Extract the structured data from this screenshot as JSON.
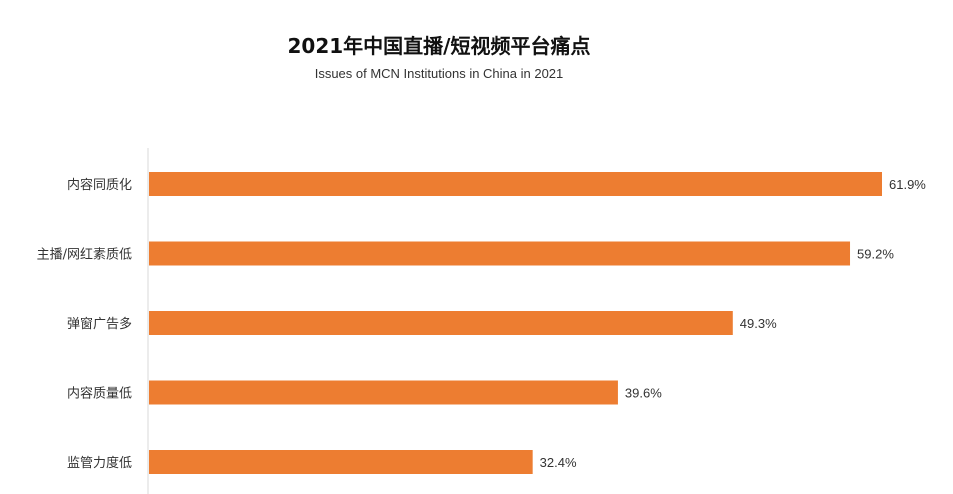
{
  "chart_data": {
    "type": "bar",
    "orientation": "horizontal",
    "title": "2021年中国直播/短视频平台痛点",
    "subtitle": "Issues of MCN Institutions in China in 2021",
    "categories": [
      "内容同质化",
      "主播/网红素质低",
      "弹窗广告多",
      "内容质量低",
      "监管力度低"
    ],
    "values": [
      61.9,
      59.2,
      49.3,
      39.6,
      32.4
    ],
    "value_labels": [
      "61.9%",
      "59.2%",
      "49.3%",
      "39.6%",
      "32.4%"
    ],
    "unit": "%",
    "xlim": [
      0,
      100
    ],
    "grid": false,
    "legend": "none",
    "bar_color": "#ED7D31",
    "axis_color": "#D9D9D9"
  }
}
